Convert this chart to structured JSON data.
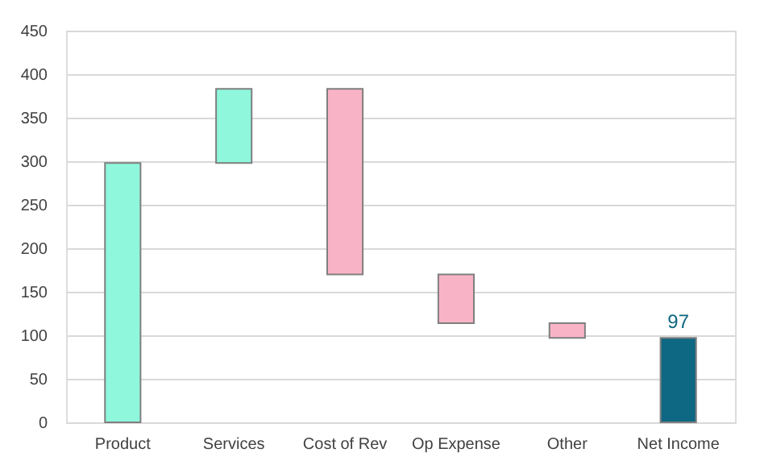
{
  "chart_data": {
    "type": "bar",
    "categories": [
      "Product",
      "Services",
      "Cost of Rev",
      "Op Expense",
      "Other",
      "Net Income"
    ],
    "base": [
      0,
      298,
      383,
      170,
      114,
      0
    ],
    "values": [
      298,
      85,
      -213,
      -56,
      -17,
      97
    ],
    "colors": [
      "#8ef7dc",
      "#8ef7dc",
      "#f8b4c6",
      "#f8b4c6",
      "#f8b4c6",
      "#0e6783"
    ],
    "value_labels": [
      null,
      null,
      null,
      null,
      null,
      "97"
    ],
    "ylim": [
      0,
      450
    ],
    "yticks": [
      0,
      50,
      100,
      150,
      200,
      250,
      300,
      350,
      400,
      450
    ],
    "grid": "y",
    "legend": false
  }
}
